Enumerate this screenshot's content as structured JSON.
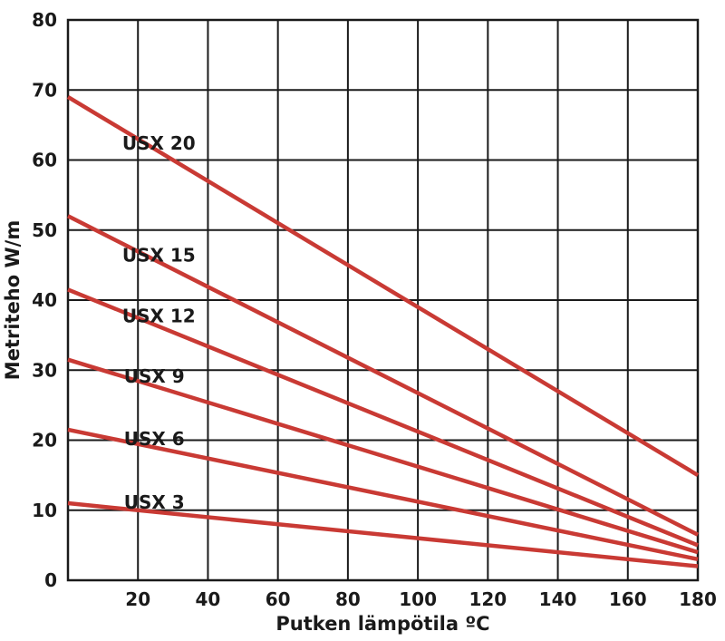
{
  "chart_data": {
    "type": "line",
    "title": "",
    "xlabel": "Putken lämpötila ºC",
    "ylabel": "Metriteho W/m",
    "xlim": [
      0,
      180
    ],
    "ylim": [
      0,
      80
    ],
    "xticks": [
      20,
      40,
      60,
      80,
      100,
      120,
      140,
      160,
      180
    ],
    "yticks": [
      0,
      10,
      20,
      30,
      40,
      50,
      60,
      70,
      80
    ],
    "x_gridlines": [
      0,
      20,
      40,
      60,
      80,
      100,
      120,
      140,
      160,
      180
    ],
    "y_gridlines": [
      0,
      10,
      20,
      30,
      40,
      50,
      60,
      70,
      80
    ],
    "grid": true,
    "legend_position": "inline-labels",
    "colors": {
      "line": "#c93a34",
      "axis": "#1a1a1a",
      "text": "#1a1a1a",
      "background": "#ffffff"
    },
    "series": [
      {
        "name": "USX 20",
        "points": [
          [
            0,
            69
          ],
          [
            180,
            15
          ]
        ],
        "label_pos": [
          15.5,
          61.5
        ]
      },
      {
        "name": "USX 15",
        "points": [
          [
            0,
            52
          ],
          [
            180,
            6.5
          ]
        ],
        "label_pos": [
          15.5,
          45.5
        ]
      },
      {
        "name": "USX 12",
        "points": [
          [
            0,
            41.5
          ],
          [
            180,
            5
          ]
        ],
        "label_pos": [
          15.5,
          36.8
        ]
      },
      {
        "name": "USX 9",
        "points": [
          [
            0,
            31.5
          ],
          [
            180,
            4
          ]
        ],
        "label_pos": [
          16,
          28.2
        ]
      },
      {
        "name": "USX 6",
        "points": [
          [
            0,
            21.5
          ],
          [
            180,
            3
          ]
        ],
        "label_pos": [
          16,
          19.3
        ]
      },
      {
        "name": "USX 3",
        "points": [
          [
            0,
            11
          ],
          [
            180,
            2
          ]
        ],
        "label_pos": [
          16,
          10.2
        ]
      }
    ]
  }
}
